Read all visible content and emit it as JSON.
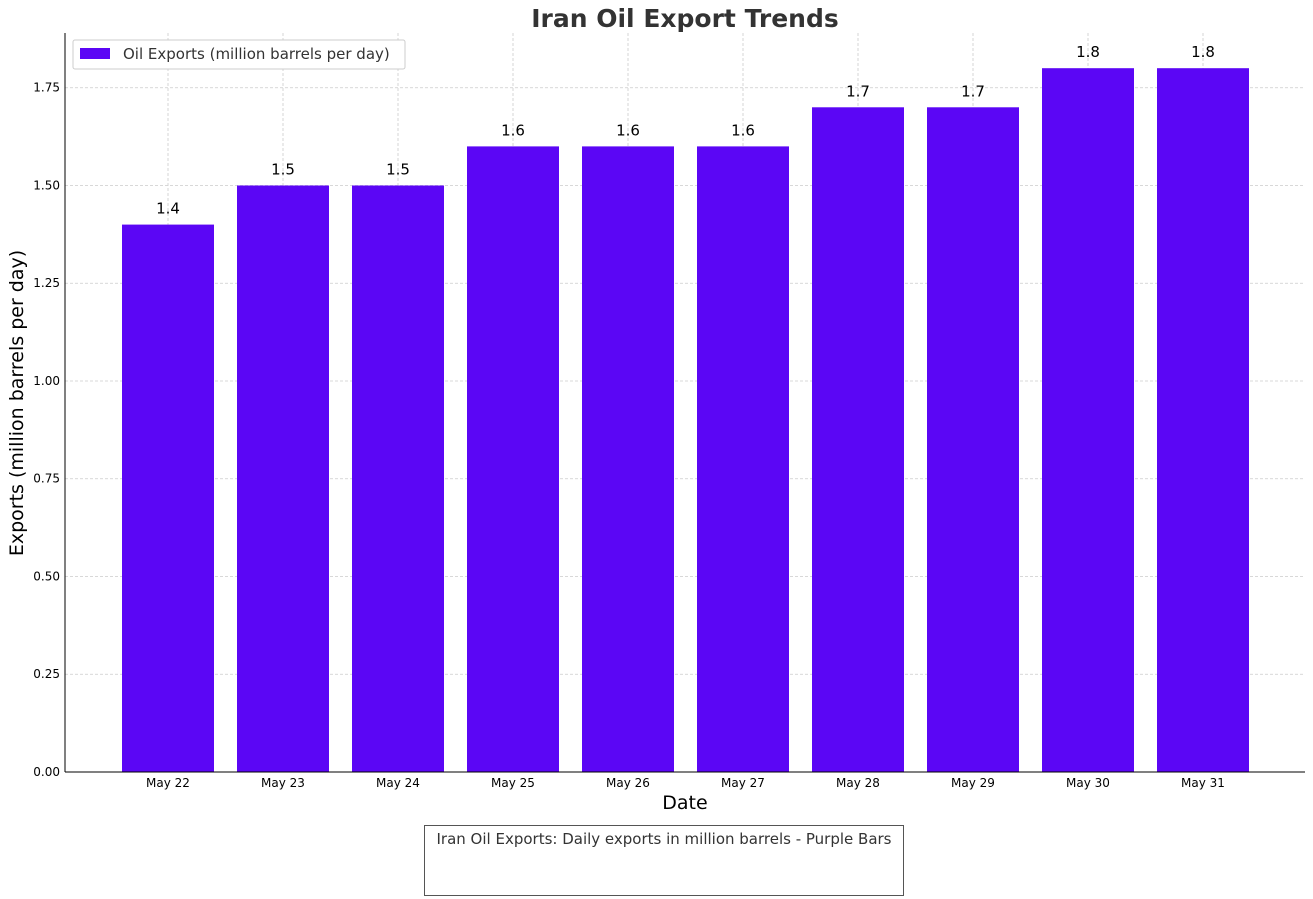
{
  "chart_data": {
    "type": "bar",
    "title": "Iran Oil Export Trends",
    "xlabel": "Date",
    "ylabel": "Exports (million barrels per day)",
    "categories": [
      "May 22",
      "May 23",
      "May 24",
      "May 25",
      "May 26",
      "May 27",
      "May 28",
      "May 29",
      "May 30",
      "May 31"
    ],
    "series": [
      {
        "name": "Oil Exports (million barrels per day)",
        "values": [
          1.4,
          1.5,
          1.5,
          1.6,
          1.6,
          1.6,
          1.7,
          1.7,
          1.8,
          1.8
        ],
        "color": "#5b06f5"
      }
    ],
    "data_labels": [
      "1.4",
      "1.5",
      "1.5",
      "1.6",
      "1.6",
      "1.6",
      "1.7",
      "1.7",
      "1.8",
      "1.8"
    ],
    "ylim": [
      0,
      1.89
    ],
    "yticks": [
      "0.00",
      "0.25",
      "0.50",
      "0.75",
      "1.00",
      "1.25",
      "1.50",
      "1.75"
    ],
    "ytick_values": [
      0,
      0.25,
      0.5,
      0.75,
      1.0,
      1.25,
      1.5,
      1.75
    ],
    "grid": true,
    "legend_position": "top-left"
  },
  "caption": "Iran Oil Exports: Daily exports in million barrels - Purple Bars"
}
